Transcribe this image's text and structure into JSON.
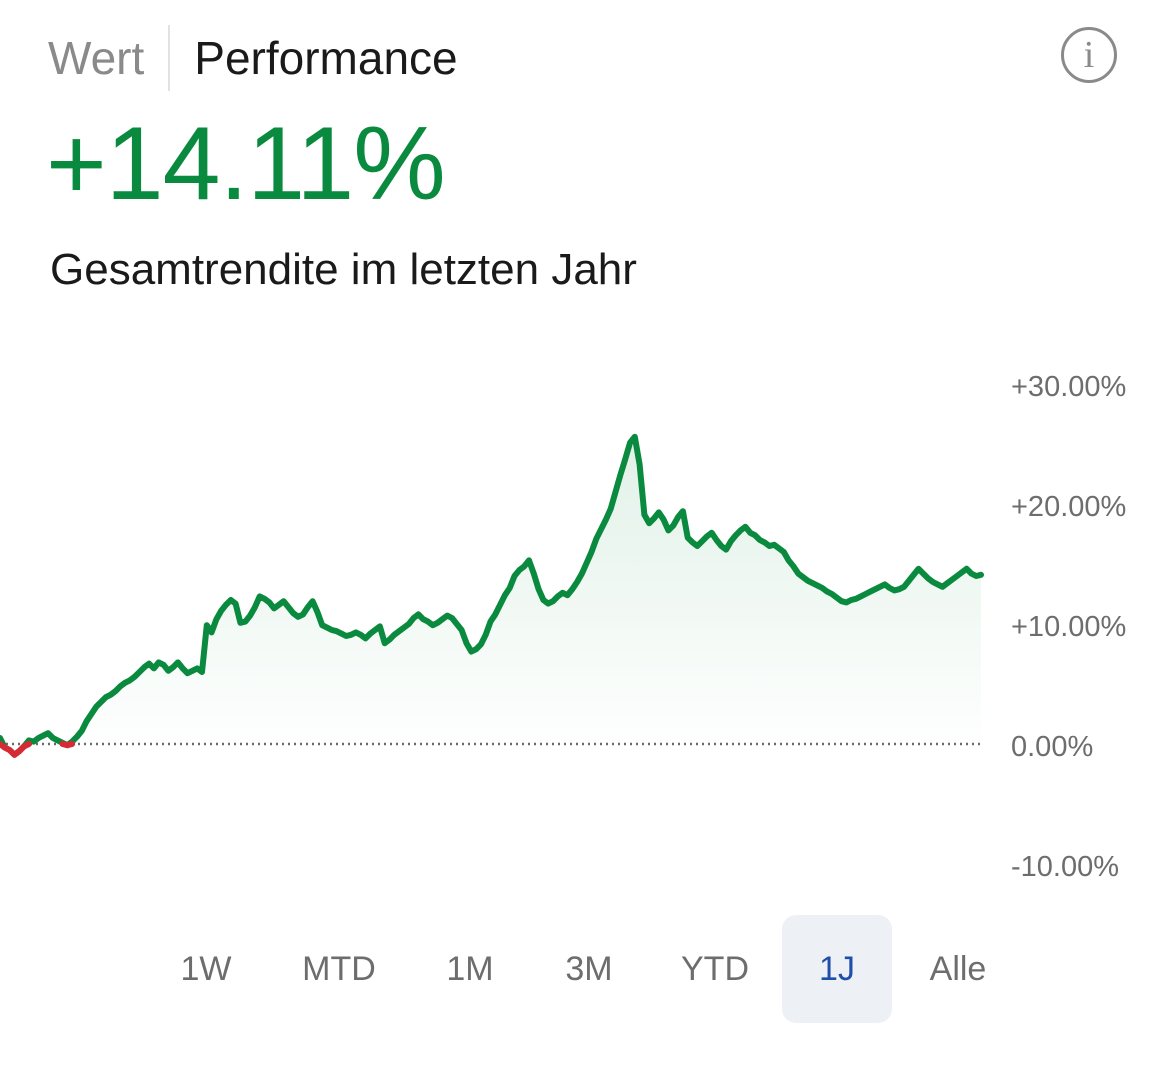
{
  "tabs": {
    "value_label": "Wert",
    "performance_label": "Performance"
  },
  "info_icon_glyph": "i",
  "headline": {
    "value": "+14.11%",
    "caption": "Gesamtrendite im letzten Jahr"
  },
  "colors": {
    "positive": "#0a8a3e",
    "negative": "#d62a35",
    "active_range_text": "#1f4fa8",
    "active_range_bg": "#edf0f5"
  },
  "ranges": {
    "items": [
      "1W",
      "MTD",
      "1M",
      "3M",
      "YTD",
      "1J",
      "Alle"
    ],
    "active": "1J"
  },
  "chart_data": {
    "type": "area",
    "ylim": [
      -10,
      30
    ],
    "yticks": [
      30,
      20,
      10,
      0,
      -10
    ],
    "ytick_labels": [
      "+30.00%",
      "+20.00%",
      "+10.00%",
      "0.00%",
      "-10.00%"
    ],
    "baseline": 0,
    "values": [
      0.5,
      -0.3,
      -0.5,
      -0.9,
      -0.6,
      -0.2,
      0.3,
      0.2,
      0.5,
      0.7,
      0.9,
      0.5,
      0.3,
      0.1,
      -0.1,
      0.2,
      0.6,
      1.1,
      1.9,
      2.5,
      3.1,
      3.5,
      3.9,
      4.1,
      4.4,
      4.8,
      5.1,
      5.3,
      5.6,
      6.0,
      6.4,
      6.7,
      6.3,
      6.8,
      6.6,
      6.1,
      6.4,
      6.8,
      6.3,
      5.9,
      6.1,
      6.3,
      6.0,
      9.9,
      9.3,
      10.4,
      11.1,
      11.6,
      12.0,
      11.7,
      10.1,
      10.2,
      10.7,
      11.4,
      12.3,
      12.1,
      11.8,
      11.3,
      11.6,
      11.9,
      11.4,
      10.9,
      10.6,
      10.8,
      11.4,
      11.9,
      11.0,
      9.9,
      9.7,
      9.5,
      9.4,
      9.2,
      9.0,
      9.1,
      9.3,
      9.1,
      8.8,
      9.2,
      9.5,
      9.8,
      8.4,
      8.7,
      9.1,
      9.4,
      9.7,
      10.0,
      10.5,
      10.8,
      10.4,
      10.2,
      9.9,
      10.1,
      10.4,
      10.7,
      10.5,
      10.0,
      9.5,
      8.4,
      7.7,
      7.9,
      8.3,
      9.1,
      10.2,
      10.8,
      11.6,
      12.4,
      13.0,
      14.0,
      14.5,
      14.8,
      15.3,
      14.2,
      12.9,
      12.0,
      11.7,
      11.9,
      12.3,
      12.6,
      12.4,
      12.9,
      13.5,
      14.2,
      15.1,
      16.0,
      17.1,
      17.9,
      18.7,
      19.6,
      21.0,
      22.4,
      23.7,
      25.1,
      25.6,
      23.3,
      19.1,
      18.4,
      18.8,
      19.3,
      18.7,
      17.8,
      18.2,
      18.9,
      19.4,
      17.2,
      16.8,
      16.5,
      16.9,
      17.3,
      17.6,
      17.0,
      16.5,
      16.2,
      16.9,
      17.4,
      17.8,
      18.1,
      17.6,
      17.4,
      17.0,
      16.8,
      16.5,
      16.6,
      16.3,
      16.0,
      15.3,
      14.8,
      14.2,
      13.9,
      13.6,
      13.4,
      13.2,
      13.0,
      12.7,
      12.5,
      12.2,
      11.9,
      11.8,
      12.0,
      12.1,
      12.3,
      12.5,
      12.7,
      12.9,
      13.1,
      13.3,
      13.0,
      12.8,
      12.9,
      13.1,
      13.6,
      14.1,
      14.6,
      14.2,
      13.8,
      13.5,
      13.3,
      13.1,
      13.4,
      13.7,
      14.0,
      14.3,
      14.6,
      14.2,
      14.0,
      14.1
    ]
  }
}
